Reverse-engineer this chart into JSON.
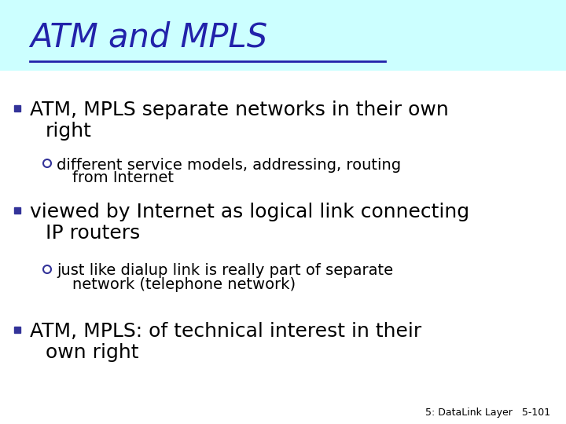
{
  "title": "ATM and MPLS",
  "title_color": "#2222AA",
  "title_bg_color": "#CCFFFF",
  "bg_color": "#FFFFFF",
  "footer": "5: DataLink Layer   5-101",
  "bullet1_color": "#333399",
  "bullet2_color": "#333399",
  "text_color": "#000000",
  "title_fontsize": 30,
  "l1_fontsize": 18,
  "l2_fontsize": 14,
  "footer_fontsize": 9,
  "items": [
    {
      "level": 1,
      "lines": [
        "ATM, MPLS separate networks in their own",
        "    right"
      ]
    },
    {
      "level": 2,
      "lines": [
        "different service models, addressing, routing",
        "    from Internet"
      ]
    },
    {
      "level": 1,
      "lines": [
        "viewed by Internet as logical link connecting",
        "    IP routers"
      ]
    },
    {
      "level": 2,
      "lines": [
        "just like dialup link is really part of separate",
        "    network (telephone network)"
      ]
    },
    {
      "level": 1,
      "lines": [
        "ATM, MPLS: of technical interest in their",
        "    own right"
      ]
    }
  ]
}
